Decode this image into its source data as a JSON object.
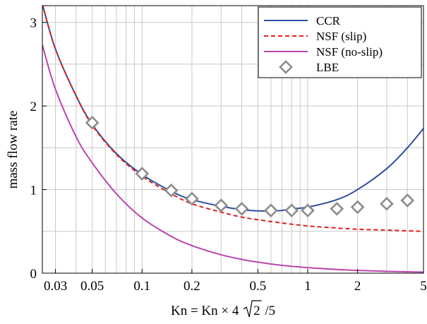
{
  "chart_data": {
    "type": "line",
    "xscale": "log",
    "xlim": [
      0.025,
      5
    ],
    "ylim": [
      0,
      3.2
    ],
    "grid": true,
    "legend_position": "top-right",
    "xlabel_parts": {
      "main": "Kn = Kn × 4 ",
      "radicand": "2",
      "tail": " /5"
    },
    "ylabel": "mass flow rate",
    "x_ticks": [
      {
        "value": 0.03,
        "label": "0.03"
      },
      {
        "value": 0.05,
        "label": "0.05"
      },
      {
        "value": 0.1,
        "label": "0.1"
      },
      {
        "value": 0.2,
        "label": "0.2"
      },
      {
        "value": 0.5,
        "label": "0.5"
      },
      {
        "value": 1,
        "label": "1"
      },
      {
        "value": 2,
        "label": "2"
      },
      {
        "value": 5,
        "label": "5"
      }
    ],
    "y_ticks": [
      {
        "value": 0,
        "label": "0"
      },
      {
        "value": 1,
        "label": "1"
      },
      {
        "value": 2,
        "label": "2"
      },
      {
        "value": 3,
        "label": "3"
      }
    ],
    "series": [
      {
        "name": "CCR",
        "kind": "line",
        "color": "#2b4fa0",
        "dash": "solid",
        "x": [
          0.025,
          0.03,
          0.04,
          0.05,
          0.07,
          0.1,
          0.15,
          0.2,
          0.3,
          0.4,
          0.5,
          0.6,
          0.7,
          0.8,
          1.0,
          1.5,
          2.0,
          3.0,
          4.0,
          5.0
        ],
        "y": [
          3.22,
          2.68,
          2.12,
          1.78,
          1.43,
          1.18,
          0.98,
          0.88,
          0.8,
          0.76,
          0.745,
          0.745,
          0.75,
          0.77,
          0.79,
          0.88,
          1.0,
          1.25,
          1.5,
          1.73
        ]
      },
      {
        "name": "NSF (slip)",
        "kind": "line",
        "color": "#e0201b",
        "dash": "dashed",
        "x": [
          0.025,
          0.03,
          0.04,
          0.05,
          0.07,
          0.1,
          0.15,
          0.2,
          0.3,
          0.4,
          0.5,
          0.7,
          1.0,
          1.5,
          2.0,
          3.0,
          5.0
        ],
        "y": [
          3.22,
          2.68,
          2.12,
          1.77,
          1.42,
          1.16,
          0.95,
          0.83,
          0.73,
          0.67,
          0.64,
          0.6,
          0.565,
          0.54,
          0.525,
          0.515,
          0.5
        ]
      },
      {
        "name": "NSF (no-slip)",
        "kind": "line",
        "color": "#bb44b0",
        "dash": "solid",
        "x": [
          0.025,
          0.03,
          0.04,
          0.05,
          0.07,
          0.1,
          0.15,
          0.2,
          0.3,
          0.4,
          0.5,
          0.7,
          1.0,
          1.5,
          2.0,
          3.0,
          5.0
        ],
        "y": [
          2.73,
          2.2,
          1.63,
          1.32,
          0.95,
          0.66,
          0.44,
          0.33,
          0.22,
          0.165,
          0.132,
          0.094,
          0.066,
          0.044,
          0.033,
          0.022,
          0.013
        ]
      },
      {
        "name": "LBE",
        "kind": "marker",
        "color": "#8c8c8c",
        "marker": "diamond",
        "x": [
          0.05,
          0.1,
          0.15,
          0.2,
          0.3,
          0.4,
          0.6,
          0.8,
          1.0,
          1.5,
          2.0,
          3.0,
          4.0
        ],
        "y": [
          1.8,
          1.19,
          0.99,
          0.89,
          0.81,
          0.77,
          0.75,
          0.75,
          0.75,
          0.77,
          0.79,
          0.83,
          0.87
        ]
      }
    ]
  }
}
